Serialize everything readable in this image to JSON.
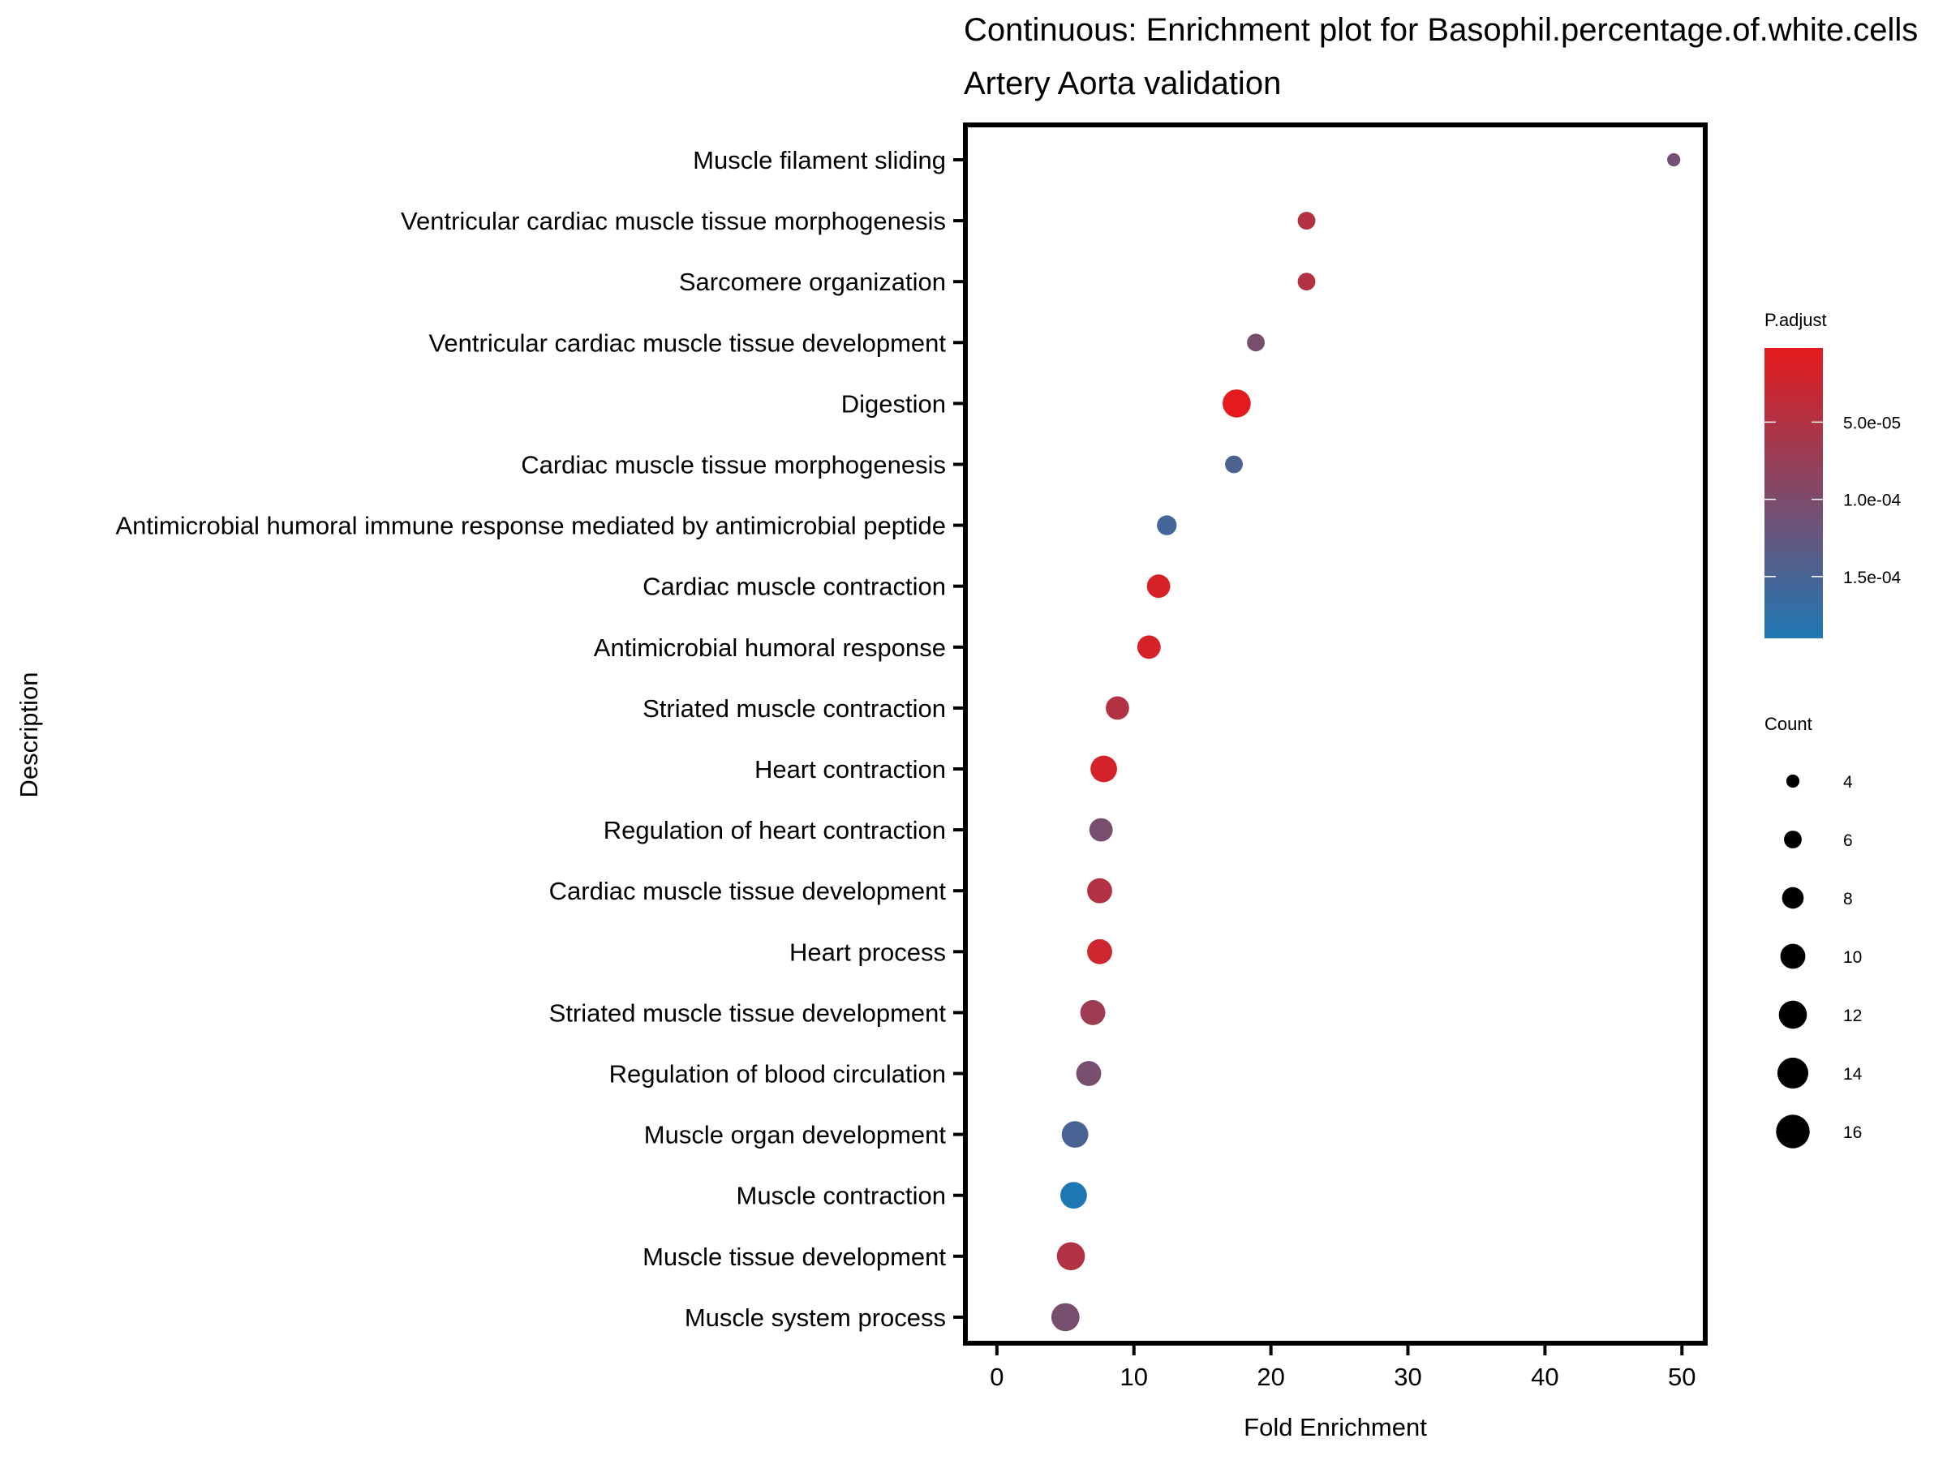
{
  "chart_data": {
    "type": "scatter",
    "title": "Continuous: Enrichment plot for Basophil.percentage.of.white.cells",
    "subtitle": "Artery Aorta validation",
    "xlabel": "Fold Enrichment",
    "ylabel": "Description",
    "xlim": [
      -2.3,
      51.7
    ],
    "xticks": [
      0,
      10,
      20,
      30,
      40,
      50
    ],
    "xtick_labels": [
      "0",
      "10",
      "20",
      "30",
      "40",
      "50"
    ],
    "grid": false,
    "points": [
      {
        "description": "Muscle filament sliding",
        "fold_enrichment": 49.4,
        "count": 4,
        "p_adjust": 0.00011
      },
      {
        "description": "Ventricular cardiac muscle tissue morphogenesis",
        "fold_enrichment": 22.6,
        "count": 6,
        "p_adjust": 5e-05
      },
      {
        "description": "Sarcomere organization",
        "fold_enrichment": 22.6,
        "count": 6,
        "p_adjust": 5e-05
      },
      {
        "description": "Ventricular cardiac muscle tissue development",
        "fold_enrichment": 18.9,
        "count": 6,
        "p_adjust": 0.000105
      },
      {
        "description": "Digestion",
        "fold_enrichment": 17.5,
        "count": 12,
        "p_adjust": 2e-06
      },
      {
        "description": "Cardiac muscle tissue morphogenesis",
        "fold_enrichment": 17.3,
        "count": 6,
        "p_adjust": 0.000145
      },
      {
        "description": "Antimicrobial humoral immune response mediated by antimicrobial peptide",
        "fold_enrichment": 12.4,
        "count": 7,
        "p_adjust": 0.000155
      },
      {
        "description": "Cardiac muscle contraction",
        "fold_enrichment": 11.8,
        "count": 9,
        "p_adjust": 1.5e-05
      },
      {
        "description": "Antimicrobial humoral response",
        "fold_enrichment": 11.1,
        "count": 9,
        "p_adjust": 1.5e-05
      },
      {
        "description": "Striated muscle contraction",
        "fold_enrichment": 8.8,
        "count": 9,
        "p_adjust": 5e-05
      },
      {
        "description": "Heart contraction",
        "fold_enrichment": 7.8,
        "count": 11,
        "p_adjust": 1.8e-05
      },
      {
        "description": "Regulation of heart contraction",
        "fold_enrichment": 7.6,
        "count": 9,
        "p_adjust": 0.000105
      },
      {
        "description": "Cardiac muscle tissue development",
        "fold_enrichment": 7.5,
        "count": 10,
        "p_adjust": 5e-05
      },
      {
        "description": "Heart process",
        "fold_enrichment": 7.5,
        "count": 10,
        "p_adjust": 2.5e-05
      },
      {
        "description": "Striated muscle tissue development",
        "fold_enrichment": 7.0,
        "count": 10,
        "p_adjust": 7e-05
      },
      {
        "description": "Regulation of blood circulation",
        "fold_enrichment": 6.7,
        "count": 10,
        "p_adjust": 0.000105
      },
      {
        "description": "Muscle organ development",
        "fold_enrichment": 5.7,
        "count": 11,
        "p_adjust": 0.00015
      },
      {
        "description": "Muscle contraction",
        "fold_enrichment": 5.6,
        "count": 11,
        "p_adjust": 0.00019
      },
      {
        "description": "Muscle tissue development",
        "fold_enrichment": 5.4,
        "count": 12,
        "p_adjust": 5e-05
      },
      {
        "description": "Muscle system process",
        "fold_enrichment": 5.0,
        "count": 12,
        "p_adjust": 0.000105
      }
    ],
    "color_legend": {
      "title": "P.adjust",
      "range": [
        2e-06,
        0.00019
      ],
      "ticks": [
        5e-05,
        0.0001,
        0.00015
      ],
      "tick_labels": [
        "5.0e-05",
        "1.0e-04",
        "1.5e-04"
      ],
      "low_color": "#e41a1c",
      "high_color": "#1f78b4"
    },
    "size_legend": {
      "title": "Count",
      "values": [
        4,
        6,
        8,
        10,
        12,
        14,
        16
      ],
      "labels": [
        "4",
        "6",
        "8",
        "10",
        "12",
        "14",
        "16"
      ]
    },
    "legend_position": "right"
  }
}
